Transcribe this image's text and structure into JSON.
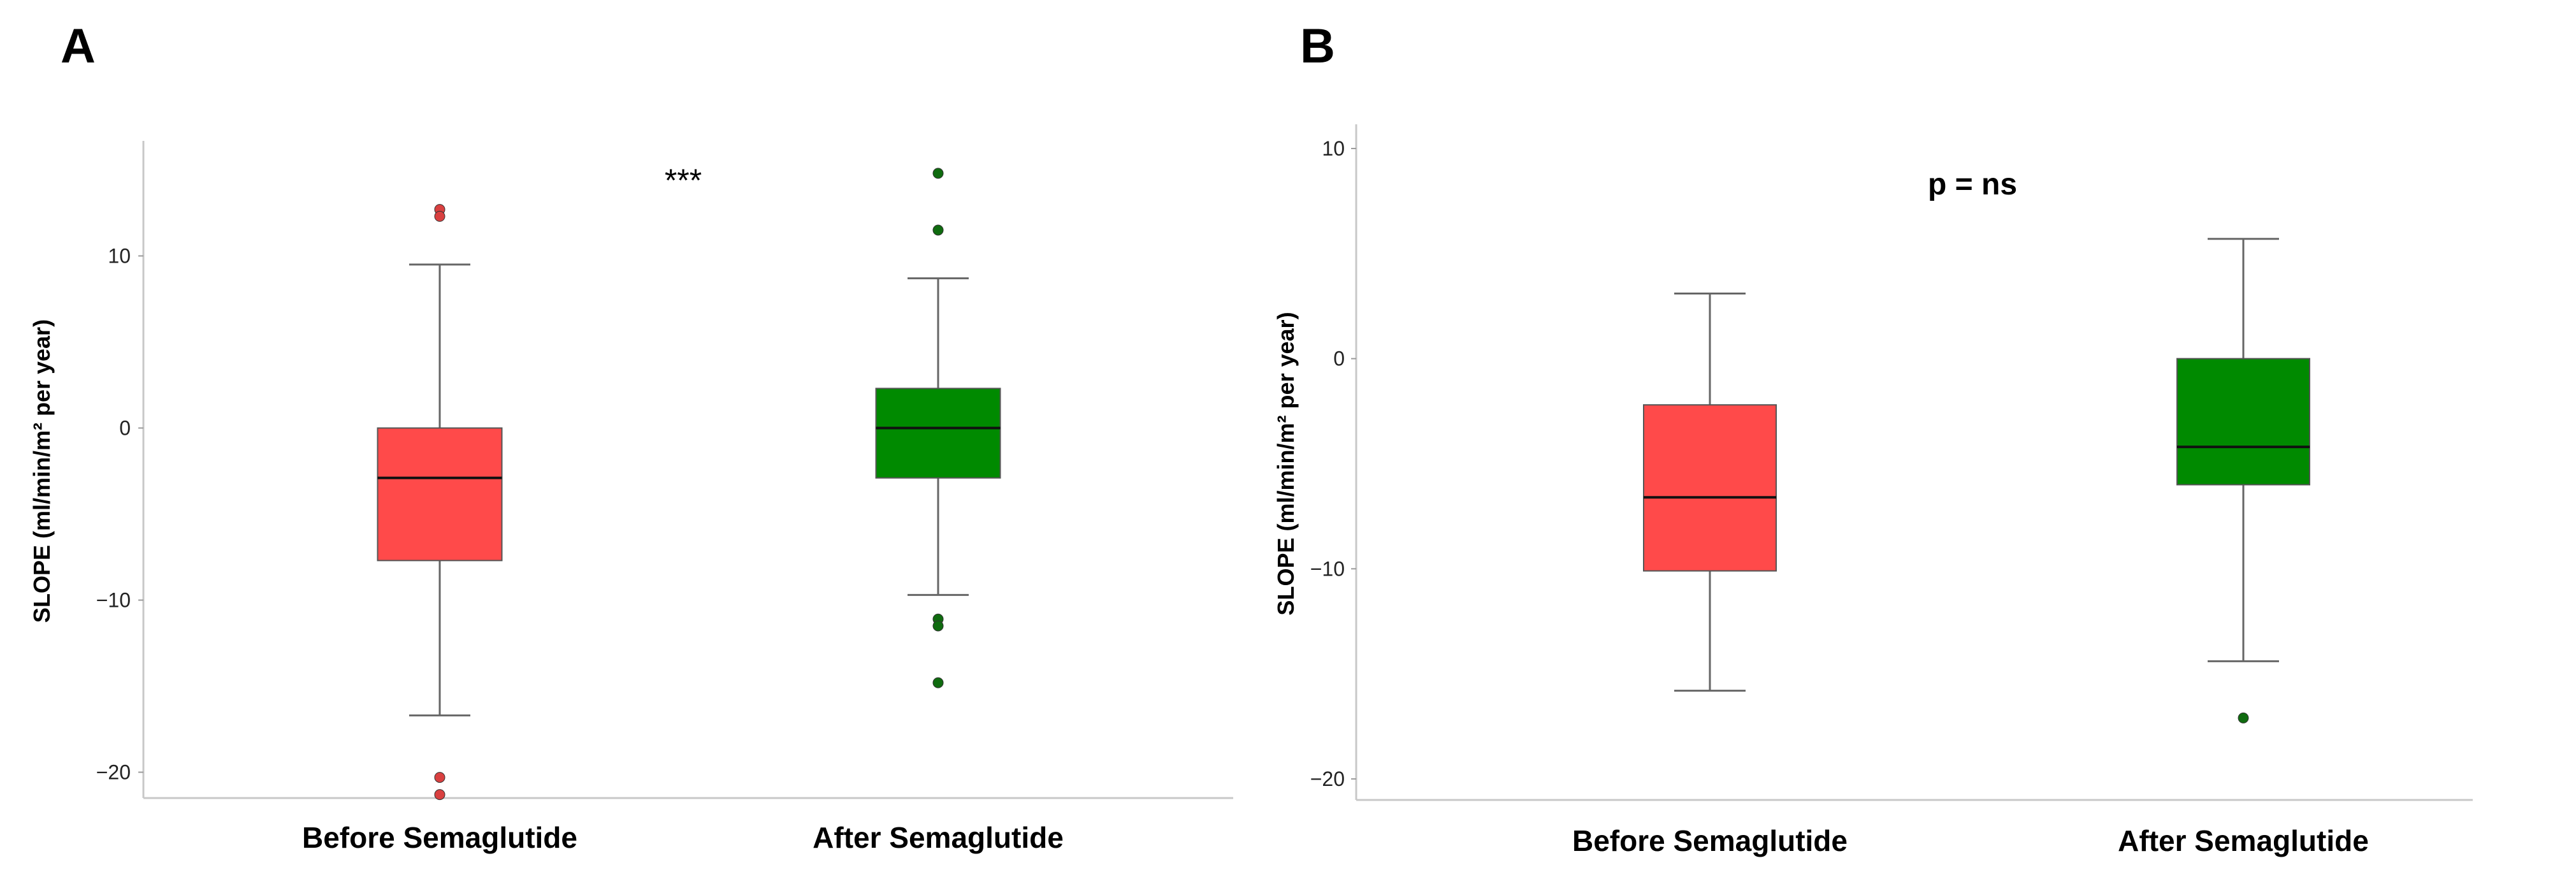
{
  "chart_data": [
    {
      "panel": "A",
      "type": "box",
      "ylabel": "SLOPE (ml/min/m² per year)",
      "ylim": [
        -21.5,
        16.5
      ],
      "yticks": [
        10,
        0,
        -10,
        -20
      ],
      "yticklabels": [
        "10",
        "0",
        "−10",
        "−20"
      ],
      "annotation": "***",
      "categories": [
        "Before Semaglutide",
        "After Semaglutide"
      ],
      "boxes": [
        {
          "name": "Before Semaglutide",
          "color": "#ff4a4a",
          "outlier_color": "#d94040",
          "whisker_low": -16.7,
          "q1": -7.7,
          "median": -2.9,
          "q3": 0.0,
          "whisker_high": 9.5,
          "outliers": [
            12.7,
            12.3,
            -20.3,
            -21.3
          ]
        },
        {
          "name": "After Semaglutide",
          "color": "#008a00",
          "outlier_color": "#0f6b0f",
          "whisker_low": -9.7,
          "q1": -2.9,
          "median": 0.0,
          "q3": 2.3,
          "whisker_high": 8.7,
          "outliers": [
            14.8,
            11.5,
            -11.1,
            -11.5,
            -14.8
          ]
        }
      ]
    },
    {
      "panel": "B",
      "type": "box",
      "ylabel": "SLOPE (ml/min/m² per year)",
      "ylim": [
        -21,
        11
      ],
      "yticks": [
        10,
        0,
        -10,
        -20
      ],
      "yticklabels": [
        "10",
        "0",
        "−10",
        "−20"
      ],
      "annotation": "p = ns",
      "categories": [
        "Before Semaglutide",
        "After Semaglutide"
      ],
      "boxes": [
        {
          "name": "Before Semaglutide",
          "color": "#ff4a4a",
          "outlier_color": "#d94040",
          "whisker_low": -15.8,
          "q1": -10.1,
          "median": -6.6,
          "q3": -2.2,
          "whisker_high": 3.1,
          "outliers": []
        },
        {
          "name": "After Semaglutide",
          "color": "#008a00",
          "outlier_color": "#0f6b0f",
          "whisker_low": -14.4,
          "q1": -6.0,
          "median": -4.2,
          "q3": 0.0,
          "whisker_high": 5.7,
          "outliers": [
            -17.1
          ]
        }
      ]
    }
  ]
}
